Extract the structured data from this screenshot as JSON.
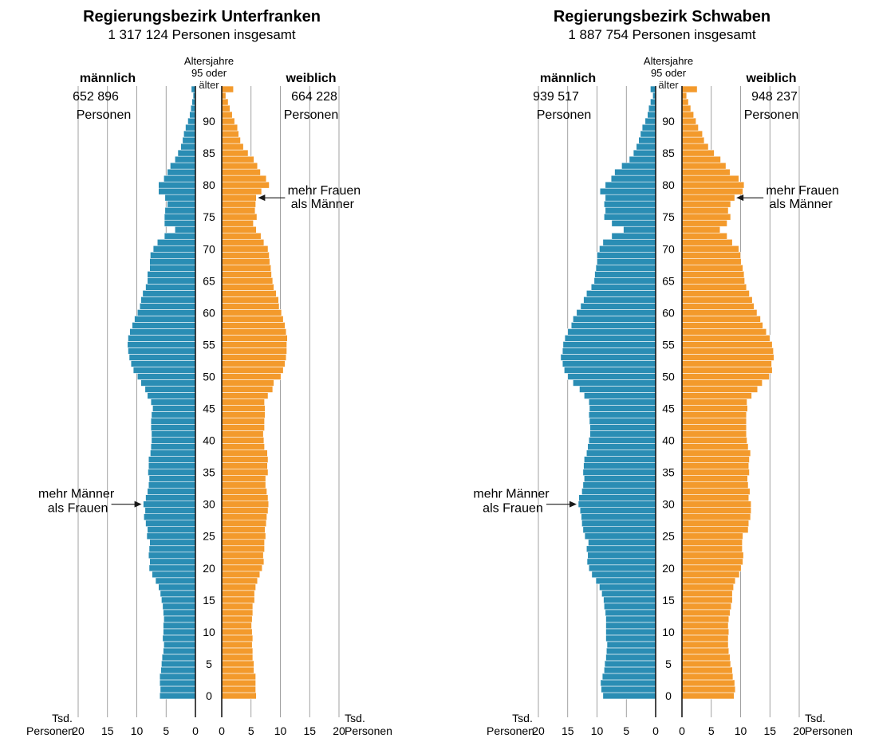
{
  "colors": {
    "male": "#2a8db4",
    "female": "#f39a2c"
  },
  "age_axis": {
    "title_lines": [
      "Altersjahre",
      "95 oder",
      "älter"
    ],
    "ticks": [
      "0",
      "5",
      "10",
      "15",
      "20",
      "25",
      "30",
      "35",
      "40",
      "45",
      "50",
      "55",
      "60",
      "65",
      "70",
      "75",
      "80",
      "85",
      "90"
    ]
  },
  "value_axis": {
    "ticks_left": [
      "20",
      "15",
      "10",
      "5",
      "0"
    ],
    "ticks_right": [
      "0",
      "5",
      "10",
      "15",
      "20"
    ],
    "unit_lines": [
      "Tsd.",
      "Personen"
    ]
  },
  "chart_data": [
    {
      "type": "bar",
      "title": "Regierungsbezirk Unterfranken",
      "subtitle": "1 317 124 Personen insgesamt",
      "male_label": {
        "heading": "männlich",
        "count": "652 896",
        "unit": "Personen"
      },
      "female_label": {
        "heading": "weiblich",
        "count": "664 228",
        "unit": "Personen"
      },
      "annotations": {
        "female": [
          "mehr Frauen",
          "als Männer"
        ],
        "male": [
          "mehr Männer",
          "als Frauen"
        ]
      },
      "xlim": [
        0,
        20
      ],
      "categories_note": "age 0 .. 95+",
      "series": [
        {
          "name": "männlich",
          "values": [
            6.1,
            6.0,
            6.1,
            6.1,
            5.9,
            5.8,
            5.7,
            5.5,
            5.4,
            5.6,
            5.5,
            5.5,
            5.4,
            5.5,
            5.6,
            5.8,
            6.0,
            6.3,
            6.8,
            7.4,
            7.9,
            7.8,
            8.0,
            7.9,
            7.8,
            8.3,
            8.2,
            8.5,
            8.8,
            8.6,
            8.9,
            8.5,
            8.2,
            8.0,
            7.9,
            8.1,
            8.0,
            8.0,
            7.7,
            7.6,
            7.5,
            7.5,
            7.6,
            7.6,
            7.5,
            7.3,
            7.6,
            8.2,
            8.6,
            9.3,
            9.9,
            10.6,
            11.0,
            11.3,
            11.5,
            11.6,
            11.5,
            11.2,
            10.8,
            10.4,
            9.9,
            9.5,
            9.3,
            9.0,
            8.5,
            8.2,
            8.2,
            7.8,
            7.8,
            7.7,
            7.2,
            6.5,
            5.3,
            3.5,
            5.3,
            5.3,
            5.2,
            4.8,
            5.2,
            6.3,
            6.3,
            5.4,
            4.8,
            4.3,
            3.5,
            3.0,
            2.5,
            2.2,
            2.0,
            1.7,
            1.3,
            1.0,
            0.8,
            0.6,
            0.4,
            0.7
          ]
        },
        {
          "name": "weiblich",
          "values": [
            5.9,
            5.8,
            5.8,
            5.8,
            5.5,
            5.5,
            5.3,
            5.3,
            5.2,
            5.3,
            5.2,
            5.1,
            5.2,
            5.3,
            5.3,
            5.6,
            5.6,
            5.8,
            6.1,
            6.5,
            6.9,
            7.2,
            7.1,
            7.3,
            7.3,
            7.5,
            7.4,
            7.6,
            7.7,
            7.9,
            8.0,
            7.9,
            7.7,
            7.5,
            7.5,
            7.9,
            7.8,
            7.9,
            7.8,
            7.3,
            7.2,
            7.1,
            7.3,
            7.3,
            7.4,
            7.4,
            7.3,
            7.9,
            8.7,
            8.9,
            10.1,
            10.5,
            10.8,
            11.0,
            11.1,
            11.1,
            11.2,
            11.0,
            10.8,
            10.5,
            10.2,
            9.8,
            9.7,
            9.3,
            8.9,
            8.7,
            8.5,
            8.4,
            8.2,
            8.1,
            7.9,
            7.2,
            6.7,
            5.9,
            5.4,
            6.0,
            5.7,
            5.8,
            5.9,
            6.8,
            8.1,
            7.6,
            6.6,
            6.1,
            5.5,
            4.5,
            3.7,
            3.2,
            2.9,
            2.7,
            2.2,
            1.8,
            1.4,
            1.1,
            0.7,
            2.0
          ]
        }
      ]
    },
    {
      "type": "bar",
      "title": "Regierungsbezirk Schwaben",
      "subtitle": "1 887 754 Personen insgesamt",
      "male_label": {
        "heading": "männlich",
        "count": "939 517",
        "unit": "Personen"
      },
      "female_label": {
        "heading": "weiblich",
        "count": "948 237",
        "unit": "Personen"
      },
      "annotations": {
        "female": [
          "mehr Frauen",
          "als Männer"
        ],
        "male": [
          "mehr Männer",
          "als Frauen"
        ]
      },
      "xlim": [
        0,
        20
      ],
      "categories_note": "age 0 .. 95+",
      "series": [
        {
          "name": "männlich",
          "values": [
            9.0,
            9.3,
            9.4,
            9.1,
            8.8,
            8.7,
            8.5,
            8.4,
            8.3,
            8.5,
            8.5,
            8.5,
            8.5,
            8.6,
            8.8,
            8.9,
            9.2,
            9.6,
            10.2,
            10.9,
            11.4,
            11.7,
            11.6,
            11.8,
            11.5,
            12.1,
            12.4,
            12.6,
            12.7,
            12.9,
            13.2,
            13.1,
            12.6,
            12.4,
            12.2,
            12.4,
            12.3,
            12.2,
            11.8,
            11.6,
            11.4,
            11.2,
            11.2,
            11.3,
            11.4,
            11.3,
            11.4,
            12.2,
            13.0,
            14.1,
            15.0,
            15.6,
            15.9,
            16.2,
            15.9,
            15.8,
            15.5,
            15.0,
            14.4,
            14.1,
            13.5,
            12.8,
            12.3,
            11.8,
            11.0,
            10.5,
            10.4,
            10.2,
            10.0,
            10.0,
            9.6,
            9.0,
            7.5,
            5.5,
            7.5,
            8.8,
            8.6,
            8.8,
            8.6,
            9.5,
            8.6,
            7.6,
            7.0,
            5.8,
            4.5,
            3.8,
            3.3,
            2.9,
            2.6,
            2.3,
            1.8,
            1.4,
            1.2,
            0.9,
            0.5,
            0.9
          ]
        },
        {
          "name": "weiblich",
          "values": [
            8.9,
            9.1,
            9.0,
            8.7,
            8.6,
            8.3,
            8.2,
            8.0,
            7.9,
            7.9,
            8.0,
            7.9,
            8.0,
            8.2,
            8.4,
            8.6,
            8.6,
            8.8,
            9.1,
            9.8,
            10.1,
            10.4,
            10.5,
            10.3,
            10.3,
            10.4,
            11.3,
            11.4,
            11.7,
            11.8,
            11.8,
            11.4,
            11.6,
            11.3,
            11.2,
            11.5,
            11.4,
            11.5,
            11.7,
            11.3,
            11.1,
            11.0,
            11.0,
            11.0,
            11.0,
            11.2,
            11.1,
            11.9,
            12.9,
            13.7,
            14.9,
            15.4,
            15.3,
            15.7,
            15.6,
            15.4,
            15.0,
            14.4,
            13.8,
            13.4,
            12.8,
            12.3,
            12.0,
            11.5,
            11.0,
            10.7,
            10.6,
            10.4,
            10.1,
            10.0,
            9.7,
            8.6,
            7.7,
            6.5,
            7.7,
            8.3,
            7.9,
            8.3,
            9.0,
            10.4,
            10.6,
            9.7,
            8.2,
            7.5,
            6.6,
            5.5,
            4.5,
            3.8,
            3.5,
            2.8,
            2.4,
            2.0,
            1.5,
            1.1,
            0.8,
            2.6
          ]
        }
      ]
    }
  ]
}
